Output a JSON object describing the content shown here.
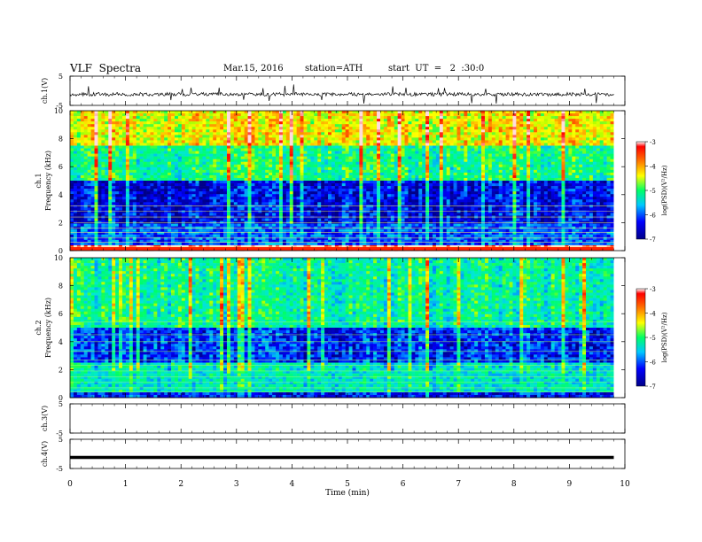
{
  "header": {
    "title": "VLF  Spectra",
    "date": "Mar.15, 2016",
    "station": "station=ATH",
    "start": "start  UT  =   2  :30:0"
  },
  "chart_data": [
    {
      "type": "line",
      "panel": "ch1-waveform",
      "ylabel": "ch.1(V)",
      "ylim": [
        -5,
        5
      ],
      "yticks": [
        "5",
        "-5"
      ],
      "description_values": {
        "baseline_V": -1.2,
        "noise_amplitude_V": 0.6,
        "spike_peak_V": 3.5
      }
    },
    {
      "type": "heatmap",
      "panel": "ch1-spectrogram",
      "ylabel": "ch.1  Frequency  (kHz)",
      "ylim": [
        0,
        10
      ],
      "yticks": [
        "0",
        "2",
        "4",
        "6",
        "8",
        "10"
      ],
      "colorbar": {
        "label": "log(PSD)(V²/Hz)",
        "range": [
          -7,
          -3
        ],
        "ticks": [
          "-3",
          "-4",
          "-5",
          "-6",
          "-7"
        ]
      },
      "dominant_levels": [
        {
          "band_kHz": [
            0,
            0.4
          ],
          "logPSD": -3
        },
        {
          "band_kHz": [
            0.4,
            2.0
          ],
          "logPSD": -6.2
        },
        {
          "band_kHz": [
            2.0,
            5.0
          ],
          "logPSD": -6.6
        },
        {
          "band_kHz": [
            5.0,
            7.5
          ],
          "logPSD": -5.2
        },
        {
          "band_kHz": [
            7.5,
            10
          ],
          "logPSD": -4.3
        }
      ]
    },
    {
      "type": "heatmap",
      "panel": "ch2-spectrogram",
      "ylabel": "ch.2  Frequency  (kHz)",
      "ylim": [
        0,
        10
      ],
      "yticks": [
        "0",
        "2",
        "4",
        "6",
        "8",
        "10"
      ],
      "colorbar": {
        "label": "log(PSD)(V²/Hz)",
        "range": [
          -7,
          -3
        ],
        "ticks": [
          "-3",
          "-4",
          "-5",
          "-6",
          "-7"
        ]
      },
      "dominant_levels": [
        {
          "band_kHz": [
            0,
            0.4
          ],
          "logPSD": -6.5
        },
        {
          "band_kHz": [
            0.4,
            2.5
          ],
          "logPSD": -5.5
        },
        {
          "band_kHz": [
            2.5,
            5.0
          ],
          "logPSD": -6.4
        },
        {
          "band_kHz": [
            5.0,
            10
          ],
          "logPSD": -5.3
        }
      ]
    },
    {
      "type": "line",
      "panel": "ch3-waveform",
      "ylabel": "ch.3(V)",
      "ylim": [
        -5,
        5
      ],
      "yticks": [
        "5",
        "-5"
      ]
    },
    {
      "type": "line",
      "panel": "ch4-waveform",
      "ylabel": "ch.4(V)",
      "ylim": [
        -5,
        5
      ],
      "yticks": [
        "5",
        "-5"
      ],
      "description_values": {
        "constant_V": -1.2
      }
    }
  ],
  "xaxis": {
    "label": "Time  (min)",
    "range": [
      0,
      10
    ],
    "ticks": [
      "0",
      "1",
      "2",
      "3",
      "4",
      "5",
      "6",
      "7",
      "8",
      "9",
      "10"
    ],
    "data_end_min": 9.8
  }
}
